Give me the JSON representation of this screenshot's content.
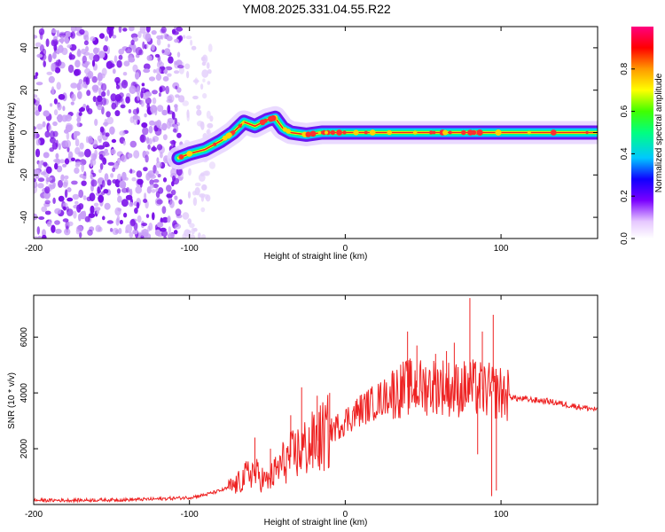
{
  "figure_title": "YM08.2025.331.04.55.R22",
  "chart_data": [
    {
      "type": "heatmap",
      "name": "spectrogram",
      "xlabel": "Height of straight line (km)",
      "ylabel": "Frequency (Hz)",
      "xlim": [
        -200,
        162
      ],
      "ylim": [
        -50,
        50
      ],
      "xticks": [
        -200,
        -100,
        0,
        100
      ],
      "yticks": [
        -40,
        -20,
        0,
        20,
        40
      ],
      "xtick_labels": [
        "-200",
        "-100",
        "0",
        "100"
      ],
      "ytick_labels": [
        "-40",
        "-20",
        "0",
        "20",
        "40"
      ],
      "colorbar_label": "Normalized spectral amplitude",
      "colorbar_range": [
        0,
        1
      ],
      "colorbar_ticks": [
        0.0,
        0.2,
        0.4,
        0.6,
        0.8
      ],
      "colorbar_tick_labels": [
        "0.0",
        "0.2",
        "0.4",
        "0.6",
        "0.8"
      ],
      "noise_region": {
        "x_from": -200,
        "x_to": -105,
        "faint_to": -85
      },
      "signal_ridge": {
        "x": [
          -107,
          -100,
          -90,
          -80,
          -72,
          -65,
          -58,
          -50,
          -45,
          -40,
          -35,
          -25,
          -15,
          -5,
          0,
          20,
          40,
          60,
          80,
          90,
          100,
          130,
          162
        ],
        "freq": [
          -12,
          -10,
          -8,
          -4,
          0,
          5,
          3,
          6,
          7,
          2,
          0,
          -1,
          0,
          0,
          0,
          0,
          0,
          0,
          0,
          0,
          0,
          0,
          0
        ]
      }
    },
    {
      "type": "line",
      "name": "snr",
      "xlabel": "Height of straight line (km)",
      "ylabel": "SNR (10 * v/v)",
      "xlim": [
        -200,
        162
      ],
      "ylim": [
        0,
        7500
      ],
      "xticks": [
        -200,
        -100,
        0,
        100
      ],
      "yticks": [
        2000,
        4000,
        6000
      ],
      "xtick_labels": [
        "-200",
        "-100",
        "0",
        "100"
      ],
      "ytick_labels": [
        "2000",
        "4000",
        "6000"
      ],
      "color": "#ee2222",
      "series": [
        {
          "name": "SNR",
          "x": [
            -200,
            -180,
            -160,
            -140,
            -120,
            -100,
            -90,
            -80,
            -70,
            -60,
            -50,
            -40,
            -30,
            -20,
            -10,
            0,
            10,
            20,
            30,
            40,
            50,
            60,
            70,
            80,
            90,
            100,
            105,
            110,
            120,
            130,
            140,
            150,
            162
          ],
          "y": [
            150,
            150,
            160,
            170,
            200,
            250,
            350,
            500,
            700,
            1200,
            800,
            1500,
            1900,
            2200,
            2600,
            3000,
            3400,
            3700,
            4000,
            4200,
            4200,
            4300,
            4100,
            4200,
            4100,
            4000,
            3900,
            3800,
            3750,
            3700,
            3600,
            3500,
            3400
          ]
        }
      ],
      "spikes": [
        {
          "x": -58,
          "y": 2400
        },
        {
          "x": -48,
          "y": 2000
        },
        {
          "x": -35,
          "y": 3200
        },
        {
          "x": -28,
          "y": 4200
        },
        {
          "x": -18,
          "y": 3900
        },
        {
          "x": -10,
          "y": 4000
        },
        {
          "x": 40,
          "y": 6200
        },
        {
          "x": 46,
          "y": 5700
        },
        {
          "x": 58,
          "y": 5400
        },
        {
          "x": 65,
          "y": 5500
        },
        {
          "x": 70,
          "y": 5800
        },
        {
          "x": 80,
          "y": 7400
        },
        {
          "x": 88,
          "y": 6200
        },
        {
          "x": 95,
          "y": 6800
        }
      ],
      "dips": [
        {
          "x": 85,
          "y": 1800
        },
        {
          "x": 94,
          "y": 300
        },
        {
          "x": 97,
          "y": 500
        }
      ]
    }
  ]
}
